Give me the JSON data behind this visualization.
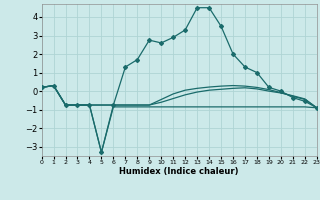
{
  "xlabel": "Humidex (Indice chaleur)",
  "background_color": "#cce9e9",
  "grid_color": "#afd4d4",
  "line_color": "#1a6b6b",
  "xlim": [
    0,
    23
  ],
  "ylim": [
    -3.5,
    4.7
  ],
  "yticks": [
    -3,
    -2,
    -1,
    0,
    1,
    2,
    3,
    4
  ],
  "xtick_positions": [
    0,
    1,
    2,
    3,
    4,
    5,
    6,
    7,
    8,
    9,
    10,
    11,
    12,
    13,
    14,
    15,
    16,
    17,
    18,
    19,
    20,
    21,
    22,
    23
  ],
  "xtick_labels": [
    "0",
    "1",
    "2",
    "3",
    "4",
    "5",
    "6",
    "7",
    "8",
    "9",
    "10",
    "11",
    "12",
    "13",
    "14",
    "15",
    "16",
    "17",
    "18",
    "19",
    "20",
    "21",
    "22",
    "23"
  ],
  "series_bottom": {
    "x": [
      0,
      1,
      2,
      3,
      4,
      5,
      6,
      7,
      8,
      9,
      10,
      11,
      12,
      13,
      14,
      15,
      16,
      17,
      18,
      19,
      20,
      21,
      22,
      23
    ],
    "y": [
      0.2,
      0.3,
      -0.75,
      -0.75,
      -0.75,
      -3.3,
      -0.85,
      -0.85,
      -0.85,
      -0.85,
      -0.85,
      -0.85,
      -0.85,
      -0.85,
      -0.85,
      -0.85,
      -0.85,
      -0.85,
      -0.85,
      -0.85,
      -0.85,
      -0.85,
      -0.85,
      -0.9
    ]
  },
  "series_mid1": {
    "x": [
      0,
      1,
      2,
      3,
      4,
      5,
      6,
      7,
      8,
      9,
      10,
      11,
      12,
      13,
      14,
      15,
      16,
      17,
      18,
      19,
      20,
      21,
      22,
      23
    ],
    "y": [
      0.2,
      0.3,
      -0.75,
      -0.75,
      -0.75,
      -0.75,
      -0.75,
      -0.75,
      -0.75,
      -0.75,
      -0.6,
      -0.4,
      -0.2,
      -0.05,
      0.05,
      0.1,
      0.15,
      0.18,
      0.12,
      0.0,
      -0.1,
      -0.25,
      -0.42,
      -0.9
    ]
  },
  "series_mid2": {
    "x": [
      0,
      1,
      2,
      3,
      4,
      5,
      6,
      7,
      8,
      9,
      10,
      11,
      12,
      13,
      14,
      15,
      16,
      17,
      18,
      19,
      20,
      21,
      22,
      23
    ],
    "y": [
      0.2,
      0.3,
      -0.75,
      -0.75,
      -0.75,
      -0.75,
      -0.75,
      -0.75,
      -0.75,
      -0.75,
      -0.45,
      -0.15,
      0.05,
      0.15,
      0.22,
      0.27,
      0.3,
      0.27,
      0.2,
      0.08,
      -0.08,
      -0.28,
      -0.45,
      -0.9
    ]
  },
  "series_main": {
    "x": [
      0,
      1,
      2,
      3,
      4,
      5,
      6,
      7,
      8,
      9,
      10,
      11,
      12,
      13,
      14,
      15,
      16,
      17,
      18,
      19,
      20,
      21,
      22,
      23
    ],
    "y": [
      0.2,
      0.3,
      -0.75,
      -0.75,
      -0.75,
      -3.3,
      -0.75,
      1.3,
      1.7,
      2.75,
      2.6,
      2.9,
      3.3,
      4.5,
      4.5,
      3.5,
      2.0,
      1.3,
      1.0,
      0.2,
      0.0,
      -0.35,
      -0.55,
      -0.9
    ]
  }
}
